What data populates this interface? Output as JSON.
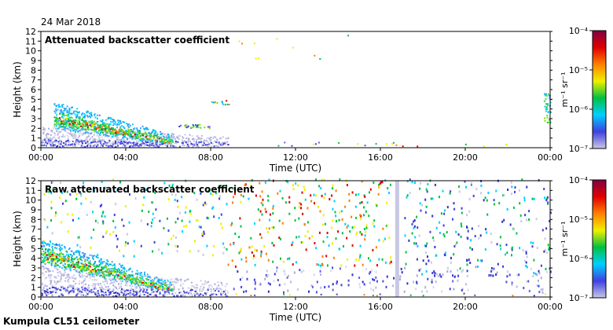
{
  "date": "24 Mar 2018",
  "footer": "Kumpula CL51 ceilometer",
  "colors": [
    "#c8c8e6",
    "#4040e0",
    "#00d0ff",
    "#00c040",
    "#f0f000",
    "#ff8000",
    "#e00000",
    "#800040"
  ],
  "chart_data": [
    {
      "type": "heatmap",
      "title": "Attenuated backscatter coefficient",
      "xlabel": "Time (UTC)",
      "ylabel": "Height (km)",
      "x_ticks": [
        "00:00",
        "04:00",
        "08:00",
        "12:00",
        "16:00",
        "20:00",
        "00:00"
      ],
      "x_range_hours": [
        0,
        24
      ],
      "y_ticks": [
        "0",
        "1",
        "2",
        "3",
        "4",
        "5",
        "6",
        "7",
        "8",
        "9",
        "10",
        "11",
        "12"
      ],
      "ylim": [
        0,
        12
      ],
      "colorbar": {
        "label": "m⁻¹ sr⁻¹",
        "ticks": [
          "10⁻⁴",
          "10⁻⁵",
          "10⁻⁶",
          "10⁻⁷"
        ],
        "range_log10": [
          -7,
          -4
        ]
      }
    },
    {
      "type": "heatmap",
      "title": "Raw attenuated backscatter coefficient",
      "xlabel": "Time (UTC)",
      "ylabel": "Height (km)",
      "x_ticks": [
        "00:00",
        "04:00",
        "08:00",
        "12:00",
        "16:00",
        "20:00",
        "00:00"
      ],
      "x_range_hours": [
        0,
        24
      ],
      "y_ticks": [
        "0",
        "1",
        "2",
        "3",
        "4",
        "5",
        "6",
        "7",
        "8",
        "9",
        "10",
        "11",
        "12"
      ],
      "ylim": [
        0,
        12
      ],
      "colorbar": {
        "label": "m⁻¹ sr⁻¹",
        "ticks": [
          "10⁻⁴",
          "10⁻⁵",
          "10⁻⁶",
          "10⁻⁷"
        ],
        "range_log10": [
          -7,
          -4
        ]
      }
    }
  ]
}
